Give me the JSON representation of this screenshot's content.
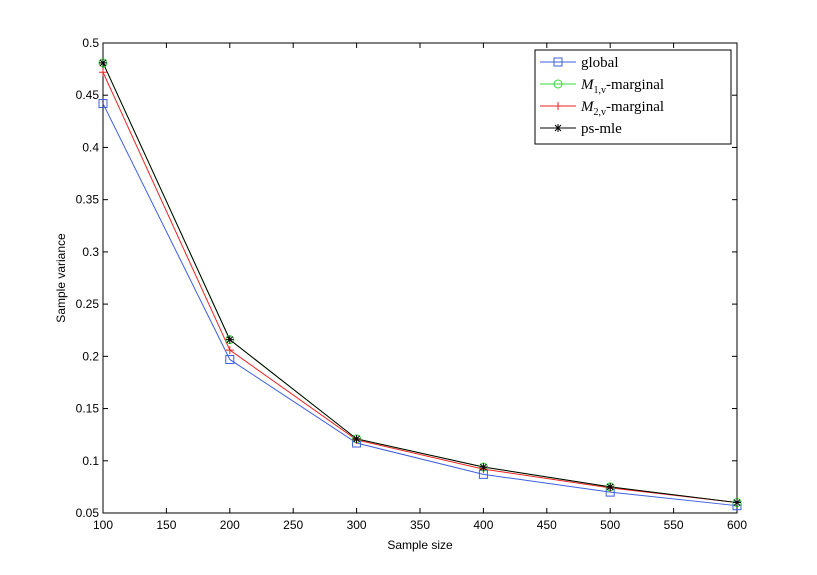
{
  "chart_data": {
    "type": "line",
    "xlabel": "Sample size",
    "ylabel": "Sample variance",
    "xlim": [
      100,
      600
    ],
    "ylim": [
      0.05,
      0.5
    ],
    "xticks": [
      100,
      150,
      200,
      250,
      300,
      350,
      400,
      450,
      500,
      550,
      600
    ],
    "yticks": [
      0.05,
      0.1,
      0.15,
      0.2,
      0.25,
      0.3,
      0.35,
      0.4,
      0.45,
      0.5
    ],
    "xtick_labels": [
      "100",
      "150",
      "200",
      "250",
      "300",
      "350",
      "400",
      "450",
      "500",
      "550",
      "600"
    ],
    "ytick_labels": [
      "0.05",
      "0.1",
      "0.15",
      "0.2",
      "0.25",
      "0.3",
      "0.35",
      "0.4",
      "0.45",
      "0.5"
    ],
    "grid": false,
    "legend_position": "top-right",
    "x": [
      100,
      200,
      300,
      400,
      500,
      600
    ],
    "series": [
      {
        "name": "global",
        "name_main": "global",
        "name_sub": "",
        "name_suffix": "",
        "color": "#3d5fe0",
        "marker": "square",
        "values": [
          0.442,
          0.197,
          0.117,
          0.087,
          0.07,
          0.057
        ]
      },
      {
        "name": "M1,v-marginal",
        "name_main": "M",
        "name_sub": "1,v",
        "name_suffix": "-marginal",
        "color": "#33dd33",
        "marker": "circle",
        "values": [
          0.481,
          0.216,
          0.121,
          0.094,
          0.075,
          0.06
        ]
      },
      {
        "name": "M2,v-marginal",
        "name_main": "M",
        "name_sub": "2,v",
        "name_suffix": "-marginal",
        "color": "#ee2222",
        "marker": "plus",
        "values": [
          0.472,
          0.206,
          0.12,
          0.092,
          0.074,
          0.06
        ]
      },
      {
        "name": "ps-mle",
        "name_main": "ps-mle",
        "name_sub": "",
        "name_suffix": "",
        "color": "#000000",
        "marker": "star",
        "values": [
          0.481,
          0.216,
          0.121,
          0.094,
          0.075,
          0.06
        ]
      }
    ]
  }
}
